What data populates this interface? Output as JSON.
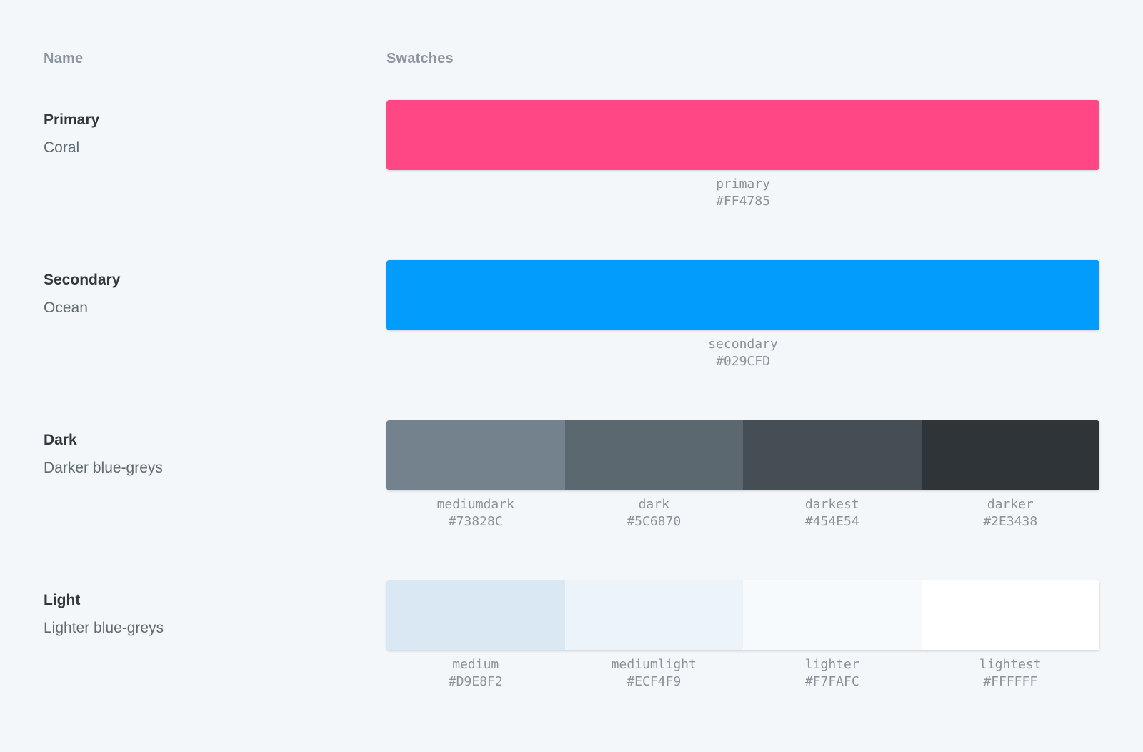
{
  "colors": {
    "page_background": "#F3F7FA",
    "header_text": "#8D959E",
    "row_name_text": "#31373D",
    "row_description_text": "#606A71",
    "swatch_label_text": "#8B9299"
  },
  "table": {
    "headers": {
      "name": "Name",
      "swatches": "Swatches"
    },
    "rows": [
      {
        "name": "Primary",
        "description": "Coral",
        "swatches": [
          {
            "label": "primary",
            "hex": "#FF4785",
            "color": "#FF4785"
          }
        ]
      },
      {
        "name": "Secondary",
        "description": "Ocean",
        "swatches": [
          {
            "label": "secondary",
            "hex": "#029CFD",
            "color": "#029CFD"
          }
        ]
      },
      {
        "name": "Dark",
        "description": "Darker blue-greys",
        "swatches": [
          {
            "label": "mediumdark",
            "hex": "#73828C",
            "color": "#73828C"
          },
          {
            "label": "dark",
            "hex": "#5C6870",
            "color": "#5C6870"
          },
          {
            "label": "darkest",
            "hex": "#454E54",
            "color": "#454E54"
          },
          {
            "label": "darker",
            "hex": "#2E3438",
            "color": "#2E3438"
          }
        ]
      },
      {
        "name": "Light",
        "description": "Lighter blue-greys",
        "swatches": [
          {
            "label": "medium",
            "hex": "#D9E8F2",
            "color": "#D9E8F2"
          },
          {
            "label": "mediumlight",
            "hex": "#ECF4F9",
            "color": "#ECF4F9"
          },
          {
            "label": "lighter",
            "hex": "#F7FAFC",
            "color": "#F7FAFC"
          },
          {
            "label": "lightest",
            "hex": "#FFFFFF",
            "color": "#FFFFFF"
          }
        ]
      }
    ]
  }
}
